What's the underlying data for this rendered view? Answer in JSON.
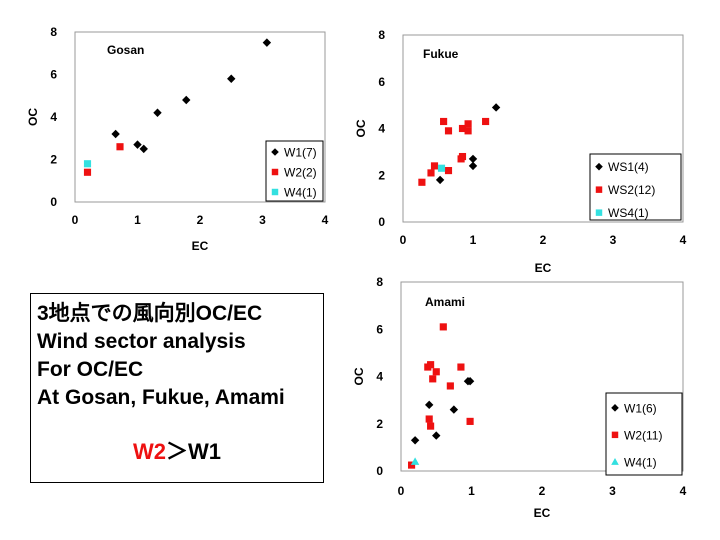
{
  "note": {
    "lines": [
      "3地点での風向別OC/EC",
      "Wind sector analysis",
      "For OC/EC",
      "At Gosan, Fukue, Amami"
    ],
    "conclusion_a": "W2",
    "conclusion_op": "＞",
    "conclusion_b": "W1",
    "colors": {
      "highlight": "#ee1111"
    }
  },
  "chart_data": [
    {
      "type": "scatter",
      "title": "Gosan",
      "xlabel": "EC",
      "ylabel": "OC",
      "xlim": [
        0,
        4
      ],
      "ylim": [
        0,
        8
      ],
      "xticks": [
        "0",
        "1",
        "2",
        "3",
        "4"
      ],
      "yticks": [
        "0",
        "2",
        "4",
        "6",
        "8"
      ],
      "legend_position": "bottom-right",
      "series": [
        {
          "name": "W1(7)",
          "marker": "diamond",
          "color": "#000000",
          "points": [
            [
              0.65,
              3.2
            ],
            [
              1.0,
              2.7
            ],
            [
              1.1,
              2.5
            ],
            [
              1.32,
              4.2
            ],
            [
              1.78,
              4.8
            ],
            [
              2.5,
              5.8
            ],
            [
              3.07,
              7.5
            ]
          ]
        },
        {
          "name": "W2(2)",
          "marker": "square",
          "color": "#ee1111",
          "points": [
            [
              0.2,
              1.4
            ],
            [
              0.72,
              2.6
            ]
          ]
        },
        {
          "name": "W4(1)",
          "marker": "square",
          "color": "#33e0e0",
          "points": [
            [
              0.2,
              1.8
            ]
          ]
        }
      ]
    },
    {
      "type": "scatter",
      "title": "Fukue",
      "xlabel": "EC",
      "ylabel": "OC",
      "xlim": [
        0,
        4
      ],
      "ylim": [
        0,
        8
      ],
      "xticks": [
        "0",
        "1",
        "2",
        "3",
        "4"
      ],
      "yticks": [
        "0",
        "2",
        "4",
        "6",
        "8"
      ],
      "legend_position": "bottom-right",
      "series": [
        {
          "name": "WS1(4)",
          "marker": "diamond",
          "color": "#000000",
          "points": [
            [
              0.53,
              1.8
            ],
            [
              1.0,
              2.4
            ],
            [
              1.0,
              2.7
            ],
            [
              1.33,
              4.9
            ]
          ]
        },
        {
          "name": "WS2(12)",
          "marker": "square",
          "color": "#ee1111",
          "points": [
            [
              0.27,
              1.7
            ],
            [
              0.4,
              2.1
            ],
            [
              0.45,
              2.4
            ],
            [
              0.65,
              2.2
            ],
            [
              0.58,
              4.3
            ],
            [
              0.65,
              3.9
            ],
            [
              0.83,
              2.7
            ],
            [
              0.85,
              2.8
            ],
            [
              0.85,
              4.0
            ],
            [
              0.93,
              3.9
            ],
            [
              0.93,
              4.2
            ],
            [
              1.18,
              4.3
            ]
          ]
        },
        {
          "name": "WS4(1)",
          "marker": "square",
          "color": "#33e0e0",
          "points": [
            [
              0.55,
              2.3
            ]
          ]
        }
      ]
    },
    {
      "type": "scatter",
      "title": "Amami",
      "xlabel": "EC",
      "ylabel": "OC",
      "xlim": [
        0,
        4
      ],
      "ylim": [
        0,
        8
      ],
      "xticks": [
        "0",
        "1",
        "2",
        "3",
        "4"
      ],
      "yticks": [
        "0",
        "2",
        "4",
        "6",
        "8"
      ],
      "legend_position": "bottom-right",
      "series": [
        {
          "name": "W1(6)",
          "marker": "diamond",
          "color": "#000000",
          "points": [
            [
              0.2,
              1.3
            ],
            [
              0.4,
              2.8
            ],
            [
              0.5,
              1.5
            ],
            [
              0.75,
              2.6
            ],
            [
              0.95,
              3.8
            ],
            [
              0.98,
              3.8
            ]
          ]
        },
        {
          "name": "W2(11)",
          "marker": "square",
          "color": "#ee1111",
          "points": [
            [
              0.15,
              0.25
            ],
            [
              0.38,
              4.4
            ],
            [
              0.42,
              4.5
            ],
            [
              0.45,
              3.9
            ],
            [
              0.5,
              4.2
            ],
            [
              0.4,
              2.2
            ],
            [
              0.42,
              1.9
            ],
            [
              0.6,
              6.1
            ],
            [
              0.7,
              3.6
            ],
            [
              0.85,
              4.4
            ],
            [
              0.98,
              2.1
            ]
          ]
        },
        {
          "name": "W4(1)",
          "marker": "triangle",
          "color": "#33e0e0",
          "points": [
            [
              0.2,
              0.4
            ]
          ]
        }
      ]
    }
  ]
}
